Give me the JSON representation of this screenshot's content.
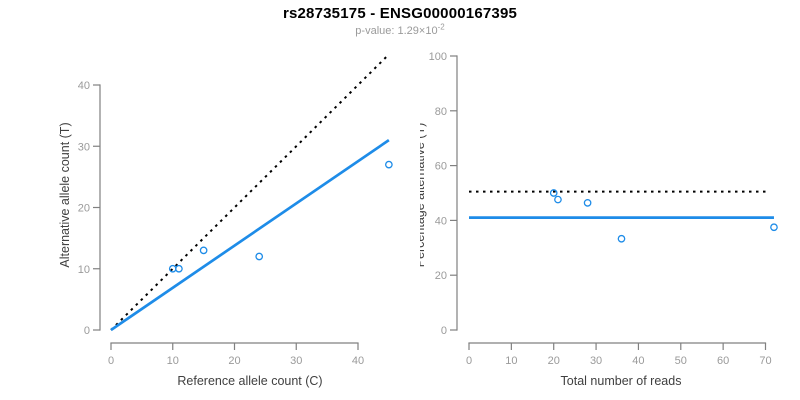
{
  "header": {
    "title": "rs28735175 - ENSG00000167395",
    "p_value_text": "p-value: 1.29×10",
    "p_value_exponent": "-2"
  },
  "colors": {
    "accent_blue": "#1E8CE8",
    "reference_black": "#000000",
    "axis_gray": "#808080",
    "tick_label_gray": "#9a9a9a",
    "axis_title_gray": "#404040",
    "background": "#ffffff",
    "subtitle_gray": "#9a9a9a"
  },
  "chart_data": [
    {
      "type": "scatter",
      "xlabel": "Reference allele count (C)",
      "ylabel": "Alternative allele count (T)",
      "xlim": [
        0,
        45
      ],
      "ylim": [
        0,
        45
      ],
      "xticks": [
        0,
        10,
        20,
        30,
        40
      ],
      "yticks": [
        0,
        10,
        20,
        30,
        40
      ],
      "grid": false,
      "legend": "none",
      "points": [
        [
          10,
          10
        ],
        [
          11,
          10
        ],
        [
          15,
          13
        ],
        [
          24,
          12
        ],
        [
          45,
          27
        ]
      ],
      "lines": [
        {
          "name": "identity-line",
          "style": "dotted",
          "color": "#000000",
          "x1": 0,
          "y1": 0,
          "x2": 44.6,
          "y2": 44.6
        },
        {
          "name": "regression-line",
          "style": "solid",
          "color": "#1E8CE8",
          "x1": 0,
          "y1": 0,
          "x2": 45,
          "y2": 31
        }
      ]
    },
    {
      "type": "scatter",
      "xlabel": "Total number of reads",
      "ylabel": "Percentage alternative (T)",
      "xlim": [
        0,
        72
      ],
      "ylim": [
        0,
        100
      ],
      "xticks": [
        0,
        10,
        20,
        30,
        40,
        50,
        60,
        70
      ],
      "yticks": [
        0,
        20,
        40,
        60,
        80,
        100
      ],
      "grid": false,
      "legend": "none",
      "points": [
        [
          20,
          50
        ],
        [
          21,
          47.6
        ],
        [
          28,
          46.4
        ],
        [
          36,
          33.3
        ],
        [
          72,
          37.5
        ]
      ],
      "lines": [
        {
          "name": "fifty-percent-line",
          "style": "dotted",
          "color": "#000000",
          "x1": 0,
          "y1": 50.5,
          "x2": 70.7,
          "y2": 50.5
        },
        {
          "name": "mean-percentage-line",
          "style": "solid",
          "color": "#1E8CE8",
          "x1": 0,
          "y1": 41,
          "x2": 72,
          "y2": 41
        }
      ]
    }
  ]
}
